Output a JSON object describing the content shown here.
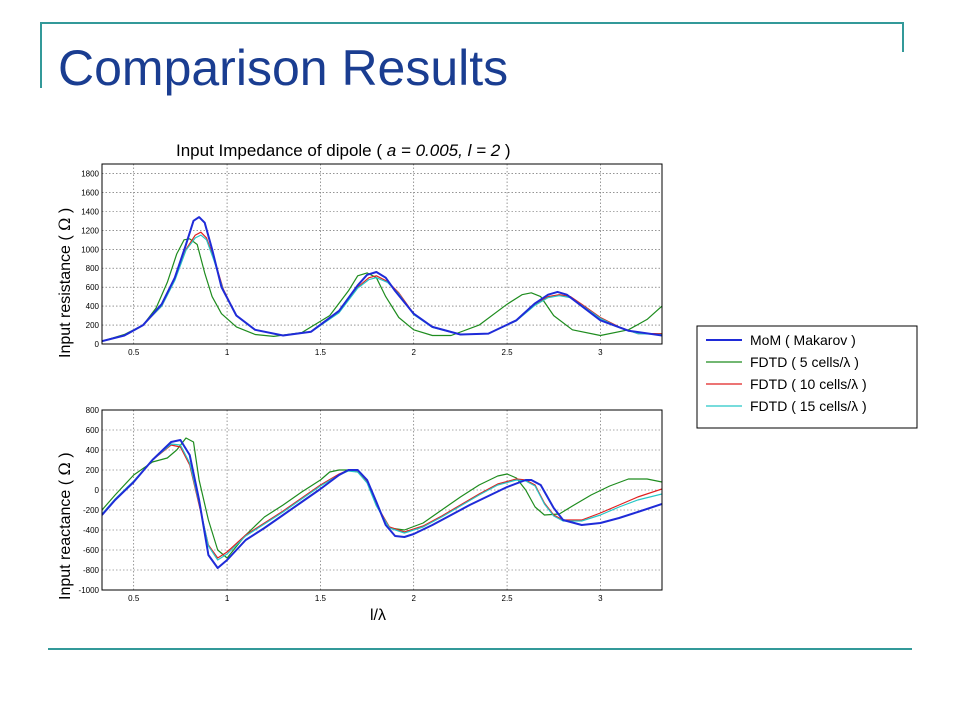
{
  "slide": {
    "title": "Comparison Results"
  },
  "colors": {
    "accent_line": "#339999",
    "title_color": "#1a3d91",
    "mom": "#1f2bd8",
    "fdtd5": "#1e8c1e",
    "fdtd10": "#e02020",
    "fdtd15": "#26c6c6"
  },
  "chart_data": [
    {
      "type": "line",
      "title": "Input Impedance of dipole ( a = 0.005, l = 2 )",
      "title_parts": [
        "Input Impedance of dipole ( ",
        "a = 0.005, l = 2",
        " )"
      ],
      "ylabel": "Input  resistance ( Ω )",
      "ylabel_parts": [
        "Input  resistance ( ",
        "Ω",
        " )"
      ],
      "xlabel": "",
      "xlim": [
        0.33,
        3.33
      ],
      "ylim": [
        0,
        1900
      ],
      "xticks": [
        "0.5",
        "1",
        "1.5",
        "2",
        "2.5",
        "3"
      ],
      "xtick_values": [
        0.5,
        1,
        1.5,
        2,
        2.5,
        3
      ],
      "yticks": [
        "0",
        "200",
        "400",
        "600",
        "800",
        "1000",
        "1200",
        "1400",
        "1600",
        "1800"
      ],
      "ytick_values": [
        0,
        200,
        400,
        600,
        800,
        1000,
        1200,
        1400,
        1600,
        1800
      ],
      "grid": true,
      "series": [
        {
          "name": "MoM ( Makarov )",
          "color": "#1f2bd8",
          "width": 2,
          "x": [
            0.33,
            0.45,
            0.55,
            0.65,
            0.72,
            0.78,
            0.82,
            0.85,
            0.88,
            0.92,
            0.97,
            1.05,
            1.15,
            1.3,
            1.45,
            1.6,
            1.7,
            1.75,
            1.8,
            1.85,
            1.9,
            2.0,
            2.1,
            2.25,
            2.4,
            2.55,
            2.65,
            2.72,
            2.77,
            2.82,
            2.9,
            3.0,
            3.15,
            3.33
          ],
          "y": [
            30,
            90,
            200,
            420,
            700,
            1050,
            1300,
            1340,
            1280,
            1000,
            600,
            300,
            150,
            90,
            130,
            350,
            620,
            730,
            760,
            700,
            560,
            320,
            180,
            100,
            110,
            250,
            430,
            520,
            550,
            520,
            400,
            250,
            140,
            90
          ]
        },
        {
          "name": "FDTD ( 5 cells/λ )",
          "color": "#1e8c1e",
          "width": 1.2,
          "x": [
            0.33,
            0.45,
            0.55,
            0.62,
            0.68,
            0.73,
            0.77,
            0.8,
            0.84,
            0.88,
            0.92,
            0.97,
            1.05,
            1.15,
            1.25,
            1.4,
            1.55,
            1.65,
            1.7,
            1.75,
            1.8,
            1.85,
            1.92,
            2.0,
            2.1,
            2.2,
            2.35,
            2.5,
            2.58,
            2.63,
            2.68,
            2.75,
            2.85,
            3.0,
            3.15,
            3.25,
            3.33
          ],
          "y": [
            30,
            100,
            200,
            380,
            650,
            950,
            1100,
            1110,
            1050,
            750,
            500,
            320,
            180,
            100,
            80,
            120,
            300,
            560,
            720,
            750,
            700,
            500,
            280,
            150,
            90,
            90,
            200,
            420,
            520,
            540,
            500,
            300,
            150,
            90,
            150,
            260,
            400
          ]
        },
        {
          "name": "FDTD ( 10 cells/λ )",
          "color": "#e02020",
          "width": 1.2,
          "x": [
            0.33,
            0.45,
            0.55,
            0.65,
            0.72,
            0.78,
            0.83,
            0.86,
            0.89,
            0.93,
            0.98,
            1.05,
            1.15,
            1.3,
            1.45,
            1.6,
            1.7,
            1.76,
            1.8,
            1.86,
            1.92,
            2.0,
            2.1,
            2.25,
            2.4,
            2.55,
            2.65,
            2.72,
            2.78,
            2.84,
            2.9,
            3.0,
            3.1,
            3.2,
            3.33
          ],
          "y": [
            30,
            90,
            200,
            400,
            680,
            1000,
            1150,
            1180,
            1120,
            900,
            580,
            300,
            150,
            90,
            130,
            340,
            600,
            700,
            720,
            660,
            540,
            320,
            180,
            100,
            110,
            250,
            420,
            500,
            520,
            500,
            420,
            280,
            180,
            110,
            110
          ]
        },
        {
          "name": "FDTD ( 15 cells/λ )",
          "color": "#26c6c6",
          "width": 1.2,
          "x": [
            0.33,
            0.45,
            0.55,
            0.65,
            0.72,
            0.78,
            0.83,
            0.86,
            0.89,
            0.93,
            0.98,
            1.05,
            1.15,
            1.3,
            1.45,
            1.6,
            1.7,
            1.76,
            1.8,
            1.86,
            1.92,
            2.0,
            2.1,
            2.25,
            2.4,
            2.55,
            2.65,
            2.72,
            2.78,
            2.84,
            2.9,
            3.0,
            3.1,
            3.2,
            3.33
          ],
          "y": [
            30,
            90,
            200,
            400,
            670,
            990,
            1120,
            1150,
            1100,
            880,
            570,
            300,
            150,
            90,
            130,
            330,
            590,
            680,
            700,
            650,
            530,
            310,
            175,
            100,
            110,
            245,
            410,
            490,
            510,
            490,
            410,
            270,
            175,
            110,
            100
          ]
        }
      ]
    },
    {
      "type": "line",
      "title": "",
      "ylabel": "Input  reactance ( Ω )",
      "ylabel_parts": [
        "Input  reactance ( ",
        "Ω",
        " )"
      ],
      "xlabel": "l/λ",
      "xlim": [
        0.33,
        3.33
      ],
      "ylim": [
        -1000,
        800
      ],
      "xticks": [
        "0.5",
        "1",
        "1.5",
        "2",
        "2.5",
        "3"
      ],
      "xtick_values": [
        0.5,
        1,
        1.5,
        2,
        2.5,
        3
      ],
      "yticks": [
        "800",
        "600",
        "400",
        "200",
        "0",
        "-200",
        "-400",
        "-600",
        "-800",
        "-1000"
      ],
      "ytick_values": [
        800,
        600,
        400,
        200,
        0,
        -200,
        -400,
        -600,
        -800,
        -1000
      ],
      "grid": true,
      "series": [
        {
          "name": "MoM ( Makarov )",
          "color": "#1f2bd8",
          "width": 2,
          "x": [
            0.33,
            0.4,
            0.5,
            0.6,
            0.7,
            0.75,
            0.8,
            0.85,
            0.9,
            0.95,
            1.0,
            1.1,
            1.2,
            1.3,
            1.4,
            1.5,
            1.6,
            1.65,
            1.7,
            1.75,
            1.8,
            1.85,
            1.9,
            1.95,
            2.0,
            2.1,
            2.2,
            2.3,
            2.4,
            2.5,
            2.6,
            2.63,
            2.68,
            2.75,
            2.8,
            2.9,
            3.0,
            3.1,
            3.2,
            3.33
          ],
          "y": [
            -250,
            -100,
            80,
            300,
            480,
            500,
            350,
            -100,
            -650,
            -780,
            -700,
            -500,
            -380,
            -250,
            -120,
            10,
            150,
            200,
            200,
            100,
            -120,
            -350,
            -460,
            -470,
            -440,
            -350,
            -250,
            -150,
            -60,
            30,
            100,
            100,
            50,
            -180,
            -300,
            -350,
            -330,
            -280,
            -220,
            -140
          ]
        },
        {
          "name": "FDTD ( 5 cells/λ )",
          "color": "#1e8c1e",
          "width": 1.2,
          "x": [
            0.33,
            0.4,
            0.5,
            0.6,
            0.68,
            0.73,
            0.78,
            0.82,
            0.85,
            0.9,
            0.95,
            1.0,
            1.1,
            1.2,
            1.3,
            1.4,
            1.5,
            1.55,
            1.6,
            1.65,
            1.7,
            1.75,
            1.8,
            1.87,
            1.95,
            2.05,
            2.15,
            2.25,
            2.35,
            2.45,
            2.5,
            2.55,
            2.6,
            2.65,
            2.7,
            2.78,
            2.85,
            2.95,
            3.05,
            3.15,
            3.25,
            3.33
          ],
          "y": [
            -200,
            -50,
            150,
            280,
            320,
            400,
            520,
            480,
            100,
            -300,
            -600,
            -680,
            -450,
            -270,
            -150,
            -20,
            100,
            180,
            200,
            200,
            180,
            80,
            -150,
            -380,
            -400,
            -330,
            -200,
            -70,
            50,
            140,
            160,
            120,
            0,
            -170,
            -250,
            -240,
            -160,
            -50,
            40,
            110,
            110,
            80
          ]
        },
        {
          "name": "FDTD ( 10 cells/λ )",
          "color": "#e02020",
          "width": 1.2,
          "x": [
            0.33,
            0.4,
            0.5,
            0.6,
            0.7,
            0.75,
            0.8,
            0.85,
            0.9,
            0.95,
            1.0,
            1.1,
            1.2,
            1.3,
            1.4,
            1.5,
            1.6,
            1.65,
            1.7,
            1.75,
            1.8,
            1.87,
            1.95,
            2.05,
            2.15,
            2.25,
            2.35,
            2.45,
            2.55,
            2.6,
            2.65,
            2.7,
            2.75,
            2.8,
            2.9,
            3.0,
            3.1,
            3.2,
            3.33
          ],
          "y": [
            -250,
            -100,
            80,
            300,
            450,
            430,
            250,
            -150,
            -550,
            -680,
            -620,
            -450,
            -330,
            -210,
            -80,
            50,
            160,
            200,
            190,
            80,
            -150,
            -370,
            -420,
            -360,
            -260,
            -150,
            -40,
            60,
            110,
            100,
            50,
            -130,
            -250,
            -300,
            -300,
            -230,
            -150,
            -70,
            10
          ]
        },
        {
          "name": "FDTD ( 15 cells/λ )",
          "color": "#26c6c6",
          "width": 1.2,
          "x": [
            0.33,
            0.4,
            0.5,
            0.6,
            0.7,
            0.75,
            0.8,
            0.85,
            0.9,
            0.95,
            1.0,
            1.1,
            1.2,
            1.3,
            1.4,
            1.5,
            1.6,
            1.65,
            1.7,
            1.75,
            1.8,
            1.87,
            1.95,
            2.05,
            2.15,
            2.25,
            2.35,
            2.45,
            2.55,
            2.6,
            2.65,
            2.7,
            2.75,
            2.8,
            2.9,
            3.0,
            3.1,
            3.2,
            3.33
          ],
          "y": [
            -240,
            -90,
            90,
            300,
            460,
            450,
            270,
            -130,
            -560,
            -700,
            -640,
            -460,
            -340,
            -220,
            -90,
            40,
            150,
            190,
            180,
            70,
            -160,
            -380,
            -430,
            -370,
            -270,
            -160,
            -50,
            50,
            100,
            90,
            40,
            -140,
            -260,
            -310,
            -310,
            -250,
            -170,
            -100,
            -40
          ]
        }
      ]
    }
  ],
  "legend": {
    "placement": "right",
    "entries": [
      "MoM ( Makarov )",
      "FDTD ( 5 cells/λ )",
      "FDTD ( 10 cells/λ )",
      "FDTD ( 15 cells/λ )"
    ],
    "colors": [
      "#1f2bd8",
      "#1e8c1e",
      "#e02020",
      "#26c6c6"
    ]
  }
}
